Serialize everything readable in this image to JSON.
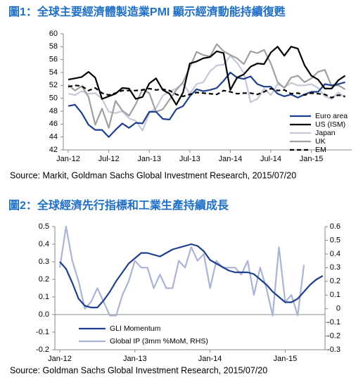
{
  "chart_data": [
    {
      "type": "line",
      "title": "圖1：全球主要經濟體製造業PMI  顯示經濟動能持續復甦",
      "source": "Source: Markit, Goldman Sachs Global Investment  Research, 2015/07/20",
      "categories": [
        "Jan-12",
        null,
        null,
        null,
        null,
        null,
        "Jul-12",
        null,
        null,
        null,
        null,
        null,
        "Jan-13",
        null,
        null,
        null,
        null,
        null,
        "Jul-13",
        null,
        null,
        null,
        null,
        null,
        "Jan-14",
        null,
        null,
        null,
        null,
        null,
        "Jul-14",
        null,
        null,
        null,
        null,
        null,
        "Jan-15",
        null,
        null,
        null,
        null,
        null
      ],
      "ylim": [
        42,
        60
      ],
      "yticks": [
        42,
        44,
        46,
        48,
        50,
        52,
        54,
        56,
        58,
        60
      ],
      "legend": "lower right",
      "series": [
        {
          "name": "Euro area",
          "color": "#1f3f8f",
          "values": [
            48.8,
            49.0,
            47.7,
            45.9,
            45.1,
            45.1,
            44.0,
            45.1,
            46.1,
            45.4,
            46.2,
            46.1,
            47.9,
            47.9,
            46.8,
            46.7,
            48.3,
            48.8,
            50.3,
            51.4,
            51.1,
            51.3,
            51.6,
            52.7,
            54.0,
            53.2,
            53.0,
            53.4,
            52.2,
            51.8,
            51.8,
            50.7,
            50.3,
            50.6,
            50.1,
            50.6,
            51.0,
            51.0,
            52.2,
            52.0,
            52.2,
            52.5
          ]
        },
        {
          "name": "US (ISM)",
          "color": "#000000",
          "values": [
            52.9,
            53.1,
            53.3,
            54.1,
            53.2,
            49.9,
            50.3,
            50.7,
            51.6,
            51.5,
            49.9,
            50.2,
            52.3,
            53.1,
            51.3,
            50.7,
            49.0,
            50.9,
            55.4,
            55.7,
            56.2,
            56.4,
            57.3,
            57.0,
            51.3,
            53.2,
            53.7,
            54.9,
            55.4,
            55.3,
            57.1,
            58.0,
            56.6,
            58.0,
            57.7,
            55.1,
            53.5,
            52.9,
            51.5,
            51.5,
            52.8,
            53.5
          ]
        },
        {
          "name": "Japan",
          "color": "#c4c8d8",
          "values": [
            50.7,
            50.5,
            51.1,
            50.7,
            50.8,
            49.9,
            47.9,
            47.7,
            48.0,
            46.9,
            46.5,
            45.0,
            47.7,
            48.5,
            50.4,
            51.1,
            51.5,
            52.3,
            50.7,
            52.2,
            52.5,
            54.2,
            55.1,
            55.2,
            56.6,
            55.5,
            53.9,
            49.4,
            49.9,
            51.5,
            50.5,
            52.2,
            51.7,
            52.4,
            52.0,
            52.0,
            52.2,
            51.6,
            50.3,
            49.9,
            50.9,
            50.1
          ]
        },
        {
          "name": "UK",
          "color": "#a0a0a0",
          "values": [
            52.1,
            51.2,
            51.9,
            50.2,
            45.9,
            48.4,
            45.4,
            49.6,
            48.1,
            47.3,
            49.1,
            51.4,
            50.8,
            47.9,
            48.3,
            49.8,
            51.3,
            52.5,
            54.8,
            57.2,
            56.7,
            56.5,
            58.4,
            57.3,
            56.7,
            56.2,
            55.3,
            57.3,
            57.0,
            57.5,
            55.4,
            52.5,
            51.6,
            53.2,
            53.5,
            52.5,
            53.1,
            54.1,
            54.4,
            51.9,
            52.0,
            51.4
          ]
        },
        {
          "name": "EM",
          "color": "#000000",
          "dashed": true,
          "values": [
            51.8,
            52.0,
            51.9,
            51.2,
            51.6,
            50.8,
            50.5,
            50.8,
            51.2,
            51.2,
            51.2,
            51.3,
            51.5,
            51.3,
            51.4,
            51.2,
            50.6,
            50.3,
            50.6,
            50.9,
            50.8,
            50.7,
            50.6,
            51.2,
            51.0,
            50.7,
            50.8,
            50.8,
            50.6,
            51.0,
            51.5,
            51.2,
            51.3,
            50.7,
            50.8,
            50.5,
            50.8,
            50.7,
            50.6,
            50.1,
            50.5,
            50.3
          ]
        }
      ]
    },
    {
      "type": "line",
      "title": "圖2：全球經濟先行指標和工業生產持續成長",
      "source": "Source: Goldman Sachs Global Investment  Research, 2015/07/20",
      "categories": [
        "Jan-12",
        null,
        null,
        null,
        null,
        null,
        null,
        null,
        null,
        null,
        null,
        null,
        "Jan-13",
        null,
        null,
        null,
        null,
        null,
        null,
        null,
        null,
        null,
        null,
        null,
        "Jan-14",
        null,
        null,
        null,
        null,
        null,
        null,
        null,
        null,
        null,
        null,
        null,
        "Jan-15",
        null,
        null,
        null,
        null,
        null,
        null
      ],
      "ylim": [
        -0.2,
        0.5
      ],
      "yticks": [
        -0.2,
        -0.1,
        {
          "value": 0,
          "label": "0.0"
        },
        0.1,
        0.2,
        0.3,
        0.4,
        0.5
      ],
      "y2lim": [
        -0.3,
        0.6
      ],
      "y2ticks": [
        -0.3,
        -0.2,
        -0.1,
        0,
        0.1,
        0.2,
        0.3,
        0.4,
        0.5,
        0.6
      ],
      "legend": "lower left",
      "series": [
        {
          "name": "GLI Momentum",
          "color": "#1f3f8f",
          "values": [
            0.3,
            0.26,
            0.18,
            0.09,
            0.05,
            0.04,
            0.04,
            0.08,
            0.13,
            0.19,
            0.24,
            0.29,
            0.32,
            0.35,
            0.35,
            0.34,
            0.33,
            0.35,
            0.37,
            0.38,
            0.39,
            0.4,
            0.39,
            0.36,
            0.31,
            0.29,
            0.27,
            0.25,
            0.24,
            0.24,
            0.24,
            0.23,
            0.2,
            0.17,
            0.13,
            0.1,
            0.07,
            0.07,
            0.09,
            0.13,
            0.17,
            0.2,
            0.22
          ]
        },
        {
          "name": "Global IP (3mm %MoM, RHS)",
          "color": "#aab4d4",
          "axis": "y2",
          "values": [
            0.3,
            0.6,
            0.35,
            0.2,
            0.0,
            0.05,
            0.15,
            0.05,
            -0.05,
            -0.05,
            0.1,
            0.2,
            0.35,
            0.3,
            0.3,
            0.15,
            0.25,
            0.15,
            0.15,
            0.35,
            0.3,
            0.45,
            0.35,
            0.4,
            0.15,
            0.35,
            0.3,
            0.3,
            0.3,
            0.25,
            0.35,
            0.1,
            0.3,
            0.15,
            -0.05,
            0.45,
            0.05,
            0.1,
            -0.05,
            0.32,
            null,
            null,
            null
          ]
        }
      ]
    }
  ]
}
